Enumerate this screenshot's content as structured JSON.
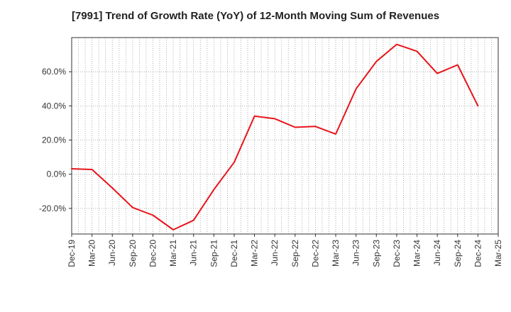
{
  "chart_data": {
    "type": "line",
    "title": "[7991]  Trend of Growth Rate (YoY) of 12-Month Moving Sum of Revenues",
    "xlabel": "",
    "ylabel": "",
    "x_ticks": [
      "Dec-19",
      "Mar-20",
      "Jun-20",
      "Sep-20",
      "Dec-20",
      "Mar-21",
      "Jun-21",
      "Sep-21",
      "Dec-21",
      "Mar-22",
      "Jun-22",
      "Sep-22",
      "Dec-22",
      "Mar-23",
      "Jun-23",
      "Sep-23",
      "Dec-23",
      "Mar-24",
      "Jun-24",
      "Sep-24",
      "Dec-24",
      "Mar-25"
    ],
    "y_ticks": [
      "-20.0%",
      "0.0%",
      "20.0%",
      "40.0%",
      "60.0%"
    ],
    "y_tick_values": [
      -20,
      0,
      20,
      40,
      60
    ],
    "ylim": [
      -35,
      80
    ],
    "grid": true,
    "line_color": "#e8141a",
    "series": [
      {
        "x": [
          "Dec-19",
          "Mar-20",
          "Jun-20",
          "Sep-20",
          "Dec-20",
          "Mar-21",
          "Jun-21",
          "Sep-21",
          "Dec-21",
          "Mar-22",
          "Jun-22",
          "Sep-22",
          "Dec-22",
          "Mar-23",
          "Jun-23",
          "Sep-23",
          "Dec-23",
          "Mar-24",
          "Jun-24",
          "Sep-24",
          "Dec-24"
        ],
        "values": [
          3.2,
          2.8,
          -8.0,
          -19.5,
          -24.0,
          -32.5,
          -27.0,
          -9.0,
          7.0,
          34.0,
          32.5,
          27.5,
          28.0,
          23.5,
          50.0,
          66.0,
          76.0,
          72.0,
          59.0,
          64.0,
          40.0
        ]
      }
    ]
  }
}
